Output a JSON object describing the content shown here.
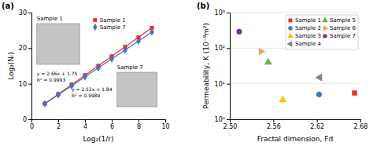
{
  "chart_data": [
    {
      "type": "line",
      "title": "(a)",
      "x_label": "Log₂(1/r)",
      "y_label": "Log₂(Nᵣ)",
      "x": [
        1,
        2,
        3,
        4,
        5,
        6,
        7,
        8,
        9
      ],
      "series": [
        {
          "name": "Sample 1",
          "color": "#e8312a",
          "marker": "square",
          "line_style": "solid",
          "values": [
            4.41,
            7.07,
            9.73,
            12.39,
            15.05,
            17.71,
            20.37,
            23.03,
            25.69
          ]
        },
        {
          "name": "Sample 7",
          "color": "#4472c4",
          "marker": "diamond",
          "line_style": "solid",
          "values": [
            4.36,
            6.88,
            9.4,
            11.92,
            14.44,
            16.96,
            19.48,
            22.0,
            24.52
          ]
        }
      ],
      "xlim": [
        0,
        10
      ],
      "ylim": [
        0,
        30
      ],
      "xticks": [
        0,
        2,
        4,
        6,
        8,
        10
      ],
      "yticks": [
        0,
        10,
        20,
        30
      ],
      "grid": false,
      "legend": "upper center",
      "annotations": [
        "y = 2.66x + 1.75\nR² = 0.9993",
        "y = 2.52x + 1.84\nR² = 0.9989",
        "Sample 1",
        "Sample 7"
      ]
    },
    {
      "type": "scatter",
      "title": "(b)",
      "x_label": "Fractal dimension, Fd",
      "y_label": "Permeability, K (10⁻⁹m²)",
      "series": [
        {
          "name": "Sample 1",
          "color": "#e8312a",
          "marker": "square",
          "x": [
            2.672
          ],
          "values": [
            5.5
          ]
        },
        {
          "name": "Sample 2",
          "color": "#4472c4",
          "marker": "circle",
          "x": [
            2.623
          ],
          "values": [
            5.0
          ]
        },
        {
          "name": "Sample 3",
          "color": "#ffc000",
          "marker": "triangle-up",
          "x": [
            2.573
          ],
          "values": [
            3.5
          ]
        },
        {
          "name": "Sample 4",
          "color": "#808080",
          "marker": "triangle-left",
          "x": [
            2.624
          ],
          "values": [
            15.0
          ]
        },
        {
          "name": "Sample 5",
          "color": "#70ad47",
          "marker": "triangle-up",
          "x": [
            2.553
          ],
          "values": [
            40.0
          ]
        },
        {
          "name": "Sample 6",
          "color": "#f4a460",
          "marker": "triangle-right",
          "x": [
            2.543
          ],
          "values": [
            80.0
          ]
        },
        {
          "name": "Sample 7",
          "color": "#7030a0",
          "marker": "circle",
          "x": [
            2.513
          ],
          "values": [
            290.0
          ]
        }
      ],
      "xlim": [
        2.5,
        2.68
      ],
      "ylim": [
        1,
        1000
      ],
      "xticks": [
        {
          "value": 2.5,
          "label": "2.50"
        },
        2.56,
        2.62,
        2.68
      ],
      "yticks": [
        {
          "value": 1,
          "label": "10⁰"
        },
        {
          "value": 10,
          "label": "10¹"
        },
        {
          "value": 100,
          "label": "10²"
        },
        {
          "value": 1000,
          "label": "10³"
        }
      ],
      "log": "y",
      "grid": "y",
      "legend": "upper right"
    }
  ]
}
